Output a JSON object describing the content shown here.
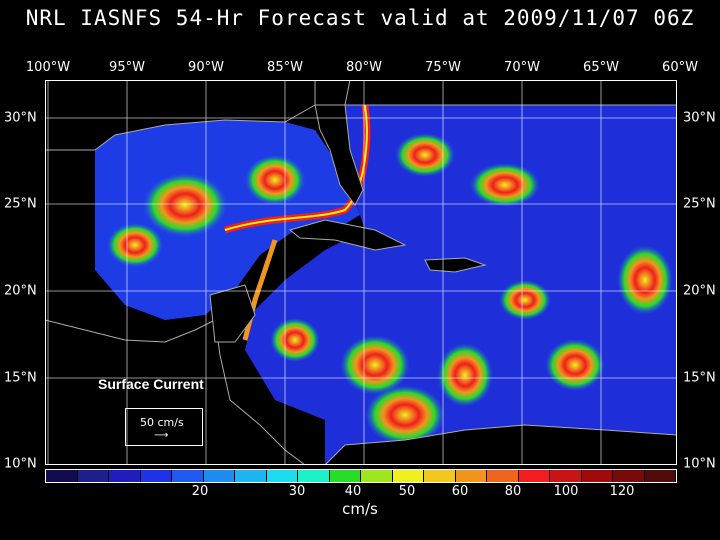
{
  "title": "NRL IASNFS  54-Hr Forecast valid at 2009/11/07 06Z",
  "lon_labels": [
    "100°W",
    "95°W",
    "90°W",
    "85°W",
    "80°W",
    "75°W",
    "70°W",
    "65°W",
    "60°W"
  ],
  "lat_labels": [
    "30°N",
    "25°N",
    "20°N",
    "15°N",
    "10°N"
  ],
  "field_label": "Surface Current",
  "reference_vector": {
    "label": "50 cm/s"
  },
  "colorbar": {
    "colors": [
      "#140a50",
      "#1e1e8c",
      "#1e1ebe",
      "#1e32e6",
      "#1e5af0",
      "#1e8cf0",
      "#1eb4f0",
      "#1edcf0",
      "#1ef0c8",
      "#28dc28",
      "#a0e61e",
      "#f0f01e",
      "#f0c81e",
      "#f0961e",
      "#f0641e",
      "#f01e1e",
      "#c81414",
      "#a00a0a",
      "#780a0a",
      "#500a0a"
    ],
    "tick_labels": [
      "20",
      "30",
      "40",
      "50",
      "60",
      "80",
      "100",
      "120"
    ],
    "unit": "cm/s"
  }
}
